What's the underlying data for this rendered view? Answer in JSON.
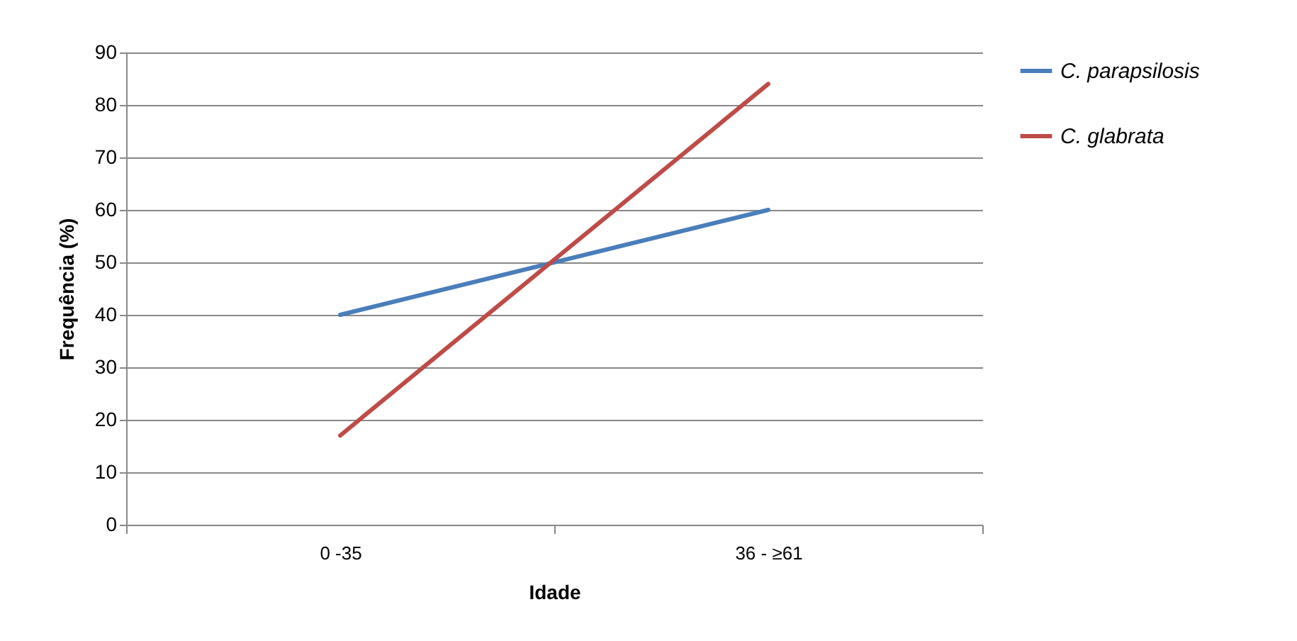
{
  "chart_data": {
    "type": "line",
    "xlabel": "Idade",
    "ylabel": "Frequência (%)",
    "categories": [
      "0 -35",
      "36 - ≥61"
    ],
    "series": [
      {
        "name": "C. parapsilosis",
        "color": "#4a7ebb",
        "values": [
          40,
          60
        ]
      },
      {
        "name": "C. glabrata",
        "color": "#be4b48",
        "values": [
          17,
          84
        ]
      }
    ],
    "ylim": [
      0,
      90
    ],
    "yticks": [
      0,
      10,
      20,
      30,
      40,
      50,
      60,
      70,
      80,
      90
    ],
    "grid": "y",
    "legend": "right",
    "marker": "none",
    "line_style": "solid"
  }
}
